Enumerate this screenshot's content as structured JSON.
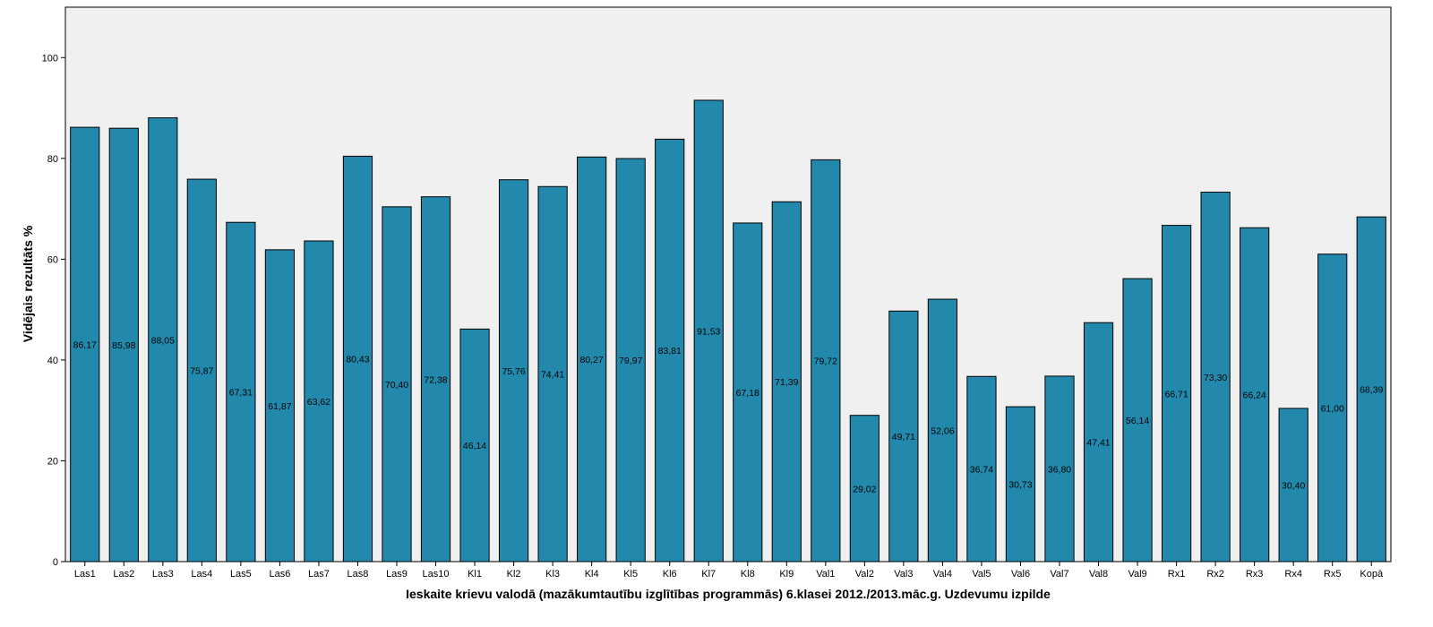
{
  "chart_data": {
    "type": "bar",
    "title": "",
    "xlabel": "Ieskaite krievu valodā (mazākumtautību izglītības programmās) 6.klasei 2012./2013.māc.g. Uzdevumu izpilde",
    "ylabel": "Vidējais rezultāts %",
    "ylim": [
      0,
      110
    ],
    "yticks": [
      0,
      20,
      40,
      60,
      80,
      100
    ],
    "grid": false,
    "legend": "none",
    "categories": [
      "Las1",
      "Las2",
      "Las3",
      "Las4",
      "Las5",
      "Las6",
      "Las7",
      "Las8",
      "Las9",
      "Las10",
      "Kl1",
      "Kl2",
      "Kl3",
      "Kl4",
      "Kl5",
      "Kl6",
      "Kl7",
      "Kl8",
      "Kl9",
      "Val1",
      "Val2",
      "Val3",
      "Val4",
      "Val5",
      "Val6",
      "Val7",
      "Val8",
      "Val9",
      "Rx1",
      "Rx2",
      "Rx3",
      "Rx4",
      "Rx5",
      "Kopā"
    ],
    "values": [
      86.17,
      85.98,
      88.05,
      75.87,
      67.31,
      61.87,
      63.62,
      80.43,
      70.4,
      72.38,
      46.14,
      75.76,
      74.41,
      80.27,
      79.97,
      83.81,
      91.53,
      67.18,
      71.39,
      79.72,
      29.02,
      49.71,
      52.06,
      36.74,
      30.73,
      36.8,
      47.41,
      56.14,
      66.71,
      73.3,
      66.24,
      30.4,
      61.0,
      68.39
    ],
    "labels": [
      "86,17",
      "85,98",
      "88,05",
      "75,87",
      "67,31",
      "61,87",
      "63,62",
      "80,43",
      "70,40",
      "72,38",
      "46,14",
      "75,76",
      "74,41",
      "80,27",
      "79,97",
      "83,81",
      "91,53",
      "67,18",
      "71,39",
      "79,72",
      "29,02",
      "49,71",
      "52,06",
      "36,74",
      "30,73",
      "36,80",
      "47,41",
      "56,14",
      "66,71",
      "73,30",
      "66,24",
      "30,40",
      "61,00",
      "68,39"
    ],
    "colors": {
      "bar_fill": "#2389ac",
      "bar_stroke": "#000000",
      "plot_background": "#f0f0f0"
    }
  }
}
